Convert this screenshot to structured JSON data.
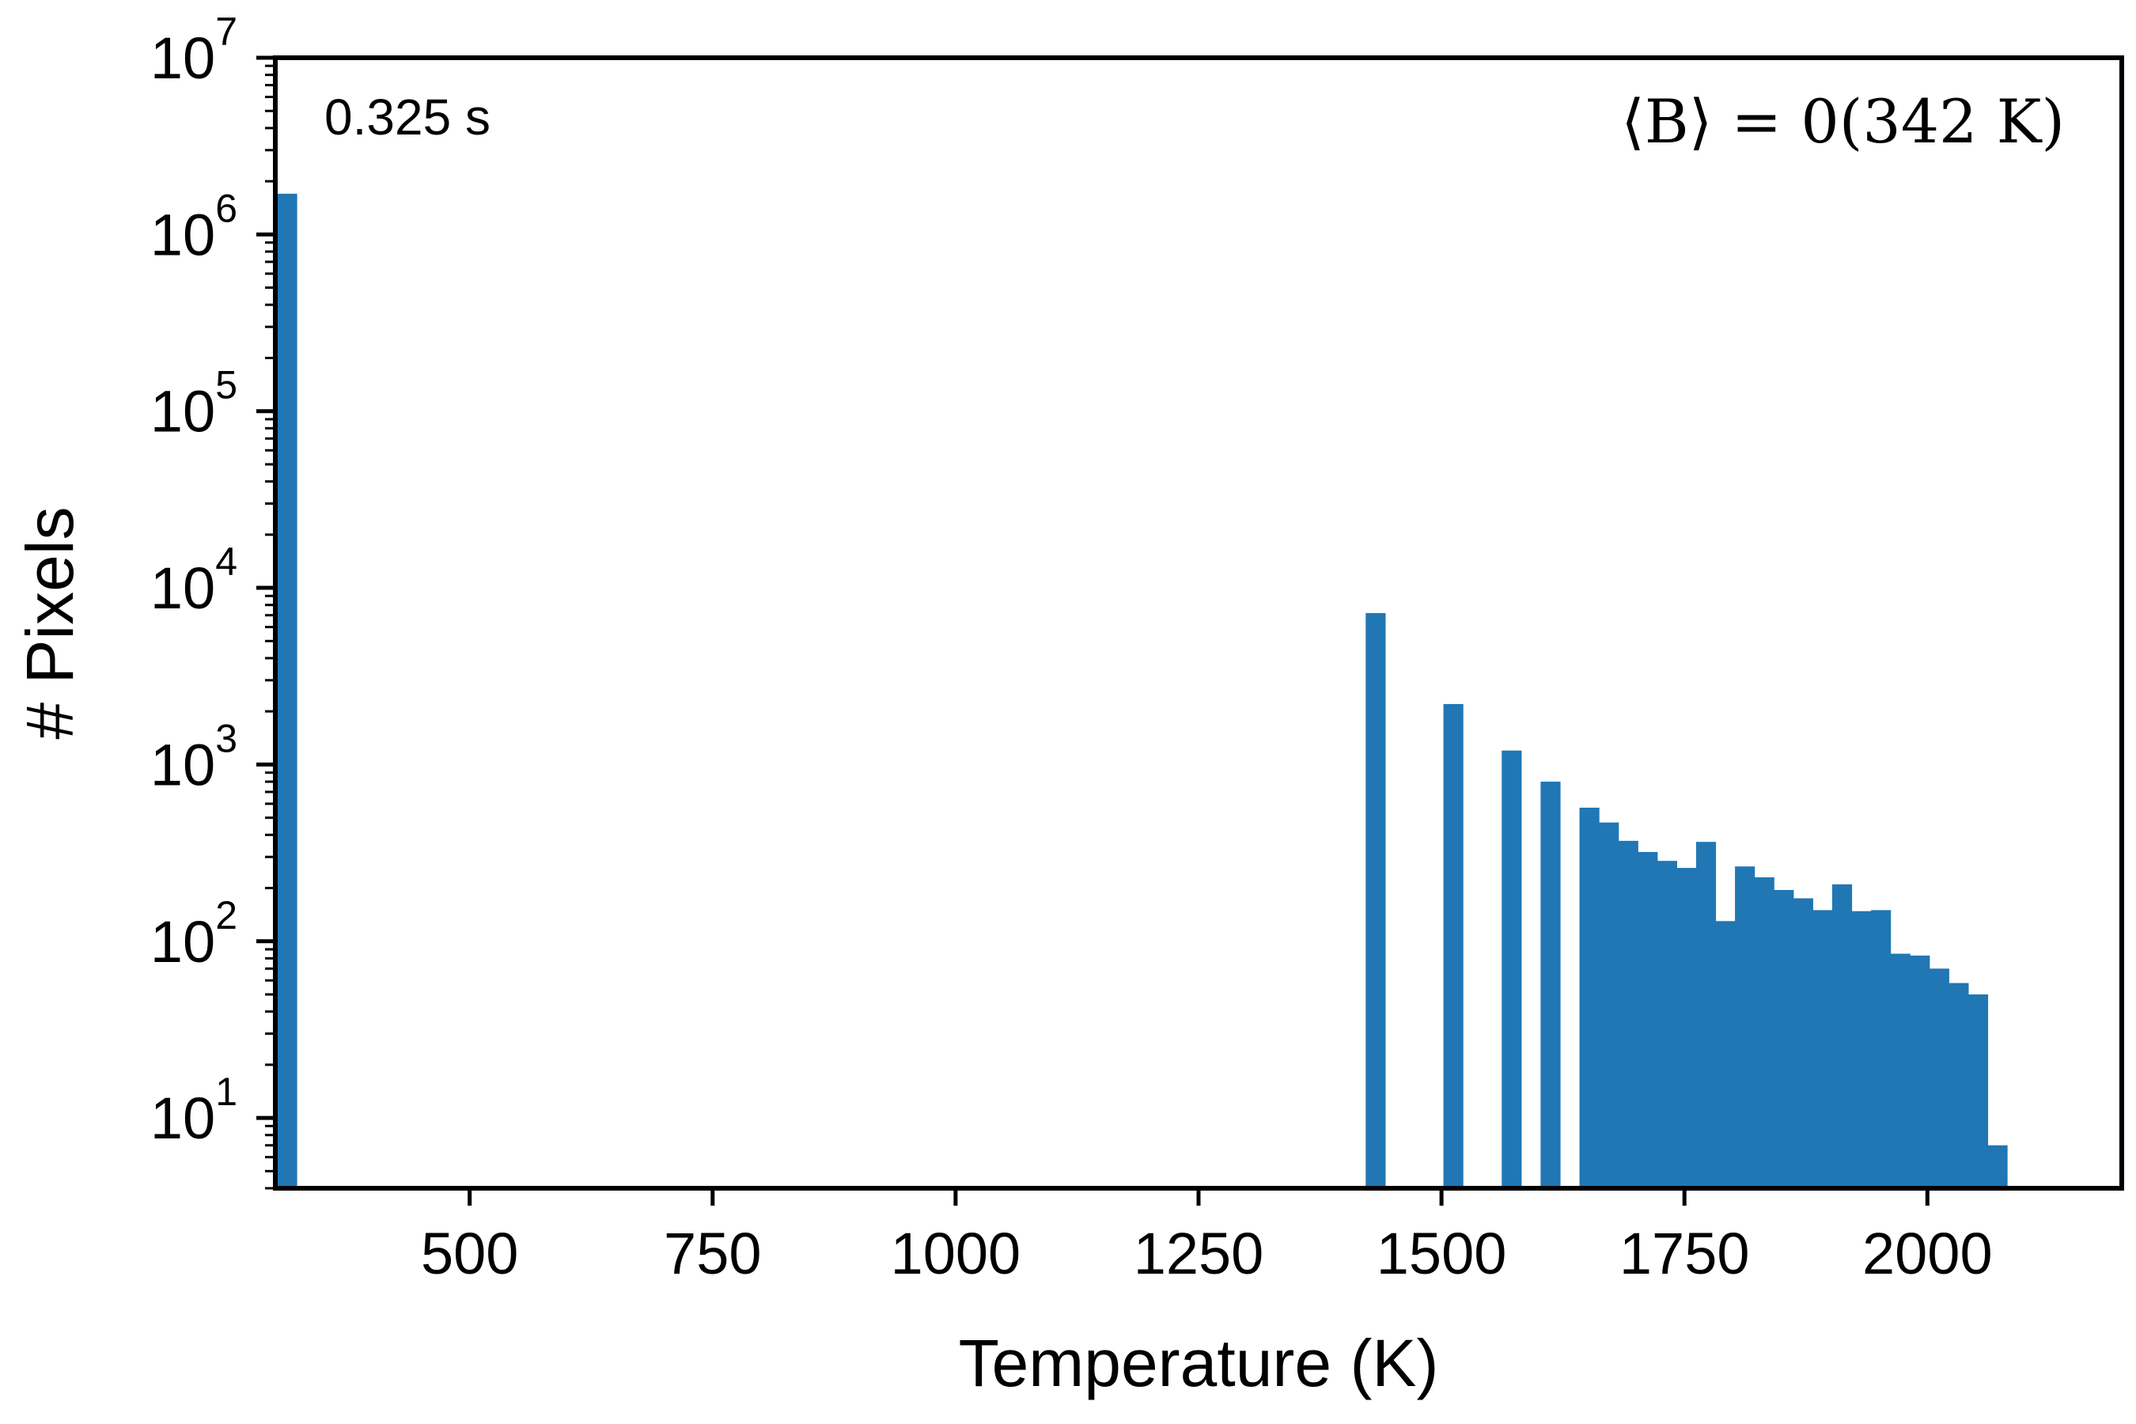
{
  "chart_data": {
    "type": "bar",
    "title": "",
    "xlabel": "Temperature (K)",
    "ylabel": "# Pixels",
    "yscale": "log",
    "xlim": [
      300,
      2200
    ],
    "ylim": [
      4,
      10000000
    ],
    "x_ticks": [
      {
        "value": 500,
        "label": "500"
      },
      {
        "value": 750,
        "label": "750"
      },
      {
        "value": 1000,
        "label": "1000"
      },
      {
        "value": 1250,
        "label": "1250"
      },
      {
        "value": 1500,
        "label": "1500"
      },
      {
        "value": 1750,
        "label": "1750"
      },
      {
        "value": 2000,
        "label": "2000"
      }
    ],
    "y_ticks": [
      {
        "value": 10,
        "base": "10",
        "exp": "1"
      },
      {
        "value": 100,
        "base": "10",
        "exp": "2"
      },
      {
        "value": 1000,
        "base": "10",
        "exp": "3"
      },
      {
        "value": 10000,
        "base": "10",
        "exp": "4"
      },
      {
        "value": 100000,
        "base": "10",
        "exp": "5"
      },
      {
        "value": 1000000,
        "base": "10",
        "exp": "6"
      },
      {
        "value": 10000000,
        "base": "10",
        "exp": "7"
      }
    ],
    "bin_width": 20,
    "bins": [
      {
        "x0": 302,
        "count": 1700000
      },
      {
        "x0": 1422,
        "count": 7200
      },
      {
        "x0": 1502,
        "count": 2200
      },
      {
        "x0": 1562,
        "count": 1200
      },
      {
        "x0": 1602,
        "count": 800
      },
      {
        "x0": 1642,
        "count": 570
      },
      {
        "x0": 1662,
        "count": 470
      },
      {
        "x0": 1682,
        "count": 370
      },
      {
        "x0": 1702,
        "count": 320
      },
      {
        "x0": 1722,
        "count": 285
      },
      {
        "x0": 1742,
        "count": 260
      },
      {
        "x0": 1762,
        "count": 365
      },
      {
        "x0": 1782,
        "count": 130
      },
      {
        "x0": 1802,
        "count": 265
      },
      {
        "x0": 1822,
        "count": 230
      },
      {
        "x0": 1842,
        "count": 195
      },
      {
        "x0": 1862,
        "count": 175
      },
      {
        "x0": 1882,
        "count": 150
      },
      {
        "x0": 1902,
        "count": 210
      },
      {
        "x0": 1922,
        "count": 148
      },
      {
        "x0": 1942,
        "count": 150
      },
      {
        "x0": 1962,
        "count": 85
      },
      {
        "x0": 1982,
        "count": 83
      },
      {
        "x0": 2002,
        "count": 70
      },
      {
        "x0": 2022,
        "count": 58
      },
      {
        "x0": 2042,
        "count": 50
      },
      {
        "x0": 2062,
        "count": 7
      }
    ],
    "bar_color": "#2077b4",
    "grid": false,
    "annotations": {
      "time": "0.325 s",
      "mean": "⟨B⟩ = 0(342 K)"
    }
  }
}
